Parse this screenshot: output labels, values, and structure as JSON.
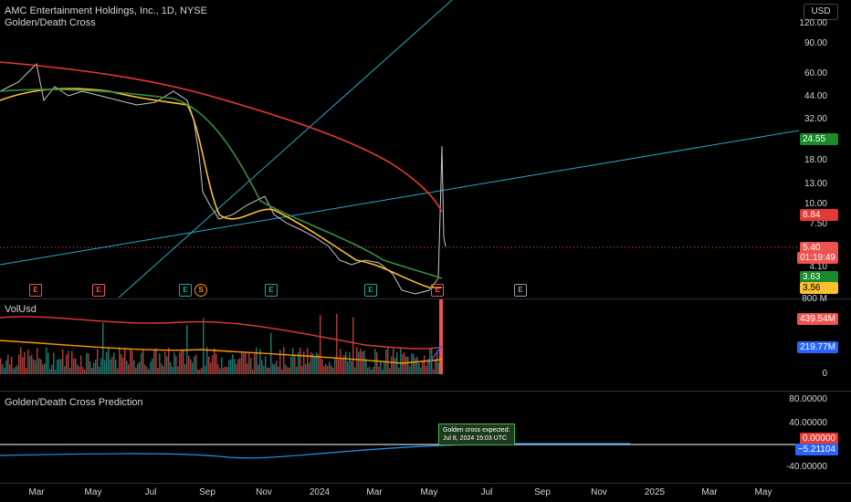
{
  "header": {
    "title": "AMC Entertainment Holdings, Inc., 1D, NYSE",
    "indicator": "Golden/Death Cross",
    "currency_button": "USD"
  },
  "price_axis": {
    "ticks": [
      "120.00",
      "90.00",
      "60.00",
      "44.00",
      "32.00",
      "18.00",
      "13.00",
      "10.00",
      "7.50",
      "4.10"
    ],
    "scale": "log",
    "tags": {
      "sma200": "24.55",
      "ma_red": "8.84",
      "last_price": "5.40",
      "countdown": "01:19:49",
      "ma_green": "3.63",
      "ma_yellow": "3.56"
    }
  },
  "volume_pane": {
    "label": "VolUsd",
    "ticks": [
      "800 M",
      "400 M",
      "0"
    ],
    "tags": {
      "vol_red": "439.54M",
      "vol_blue": "219.77M"
    }
  },
  "prediction_pane": {
    "label": "Golden/Death Cross Prediction",
    "ticks": [
      "80.00000",
      "40.00000",
      "-40.00000"
    ],
    "tags": {
      "zero": "0.00000",
      "value": "−5.21104"
    },
    "tooltip_line1": "Golden cross expected:",
    "tooltip_line2": "Jul 8, 2024 15:03 UTC"
  },
  "earnings_markers": [
    "E",
    "E",
    "E",
    "S",
    "E",
    "E",
    "E",
    "E"
  ],
  "x_axis": [
    "Mar",
    "May",
    "Jul",
    "Sep",
    "Nov",
    "2024",
    "Mar",
    "May",
    "Jul",
    "Sep",
    "Nov",
    "2025",
    "Mar",
    "May"
  ],
  "colors": {
    "sma_red": "#e53935",
    "sma_green": "#388e3c",
    "sma_yellow": "#fbc02d",
    "trendline": "#26a9c8",
    "price": "#c8c8c8",
    "vol_up": "#26a69a",
    "vol_down": "#ef5350"
  }
}
